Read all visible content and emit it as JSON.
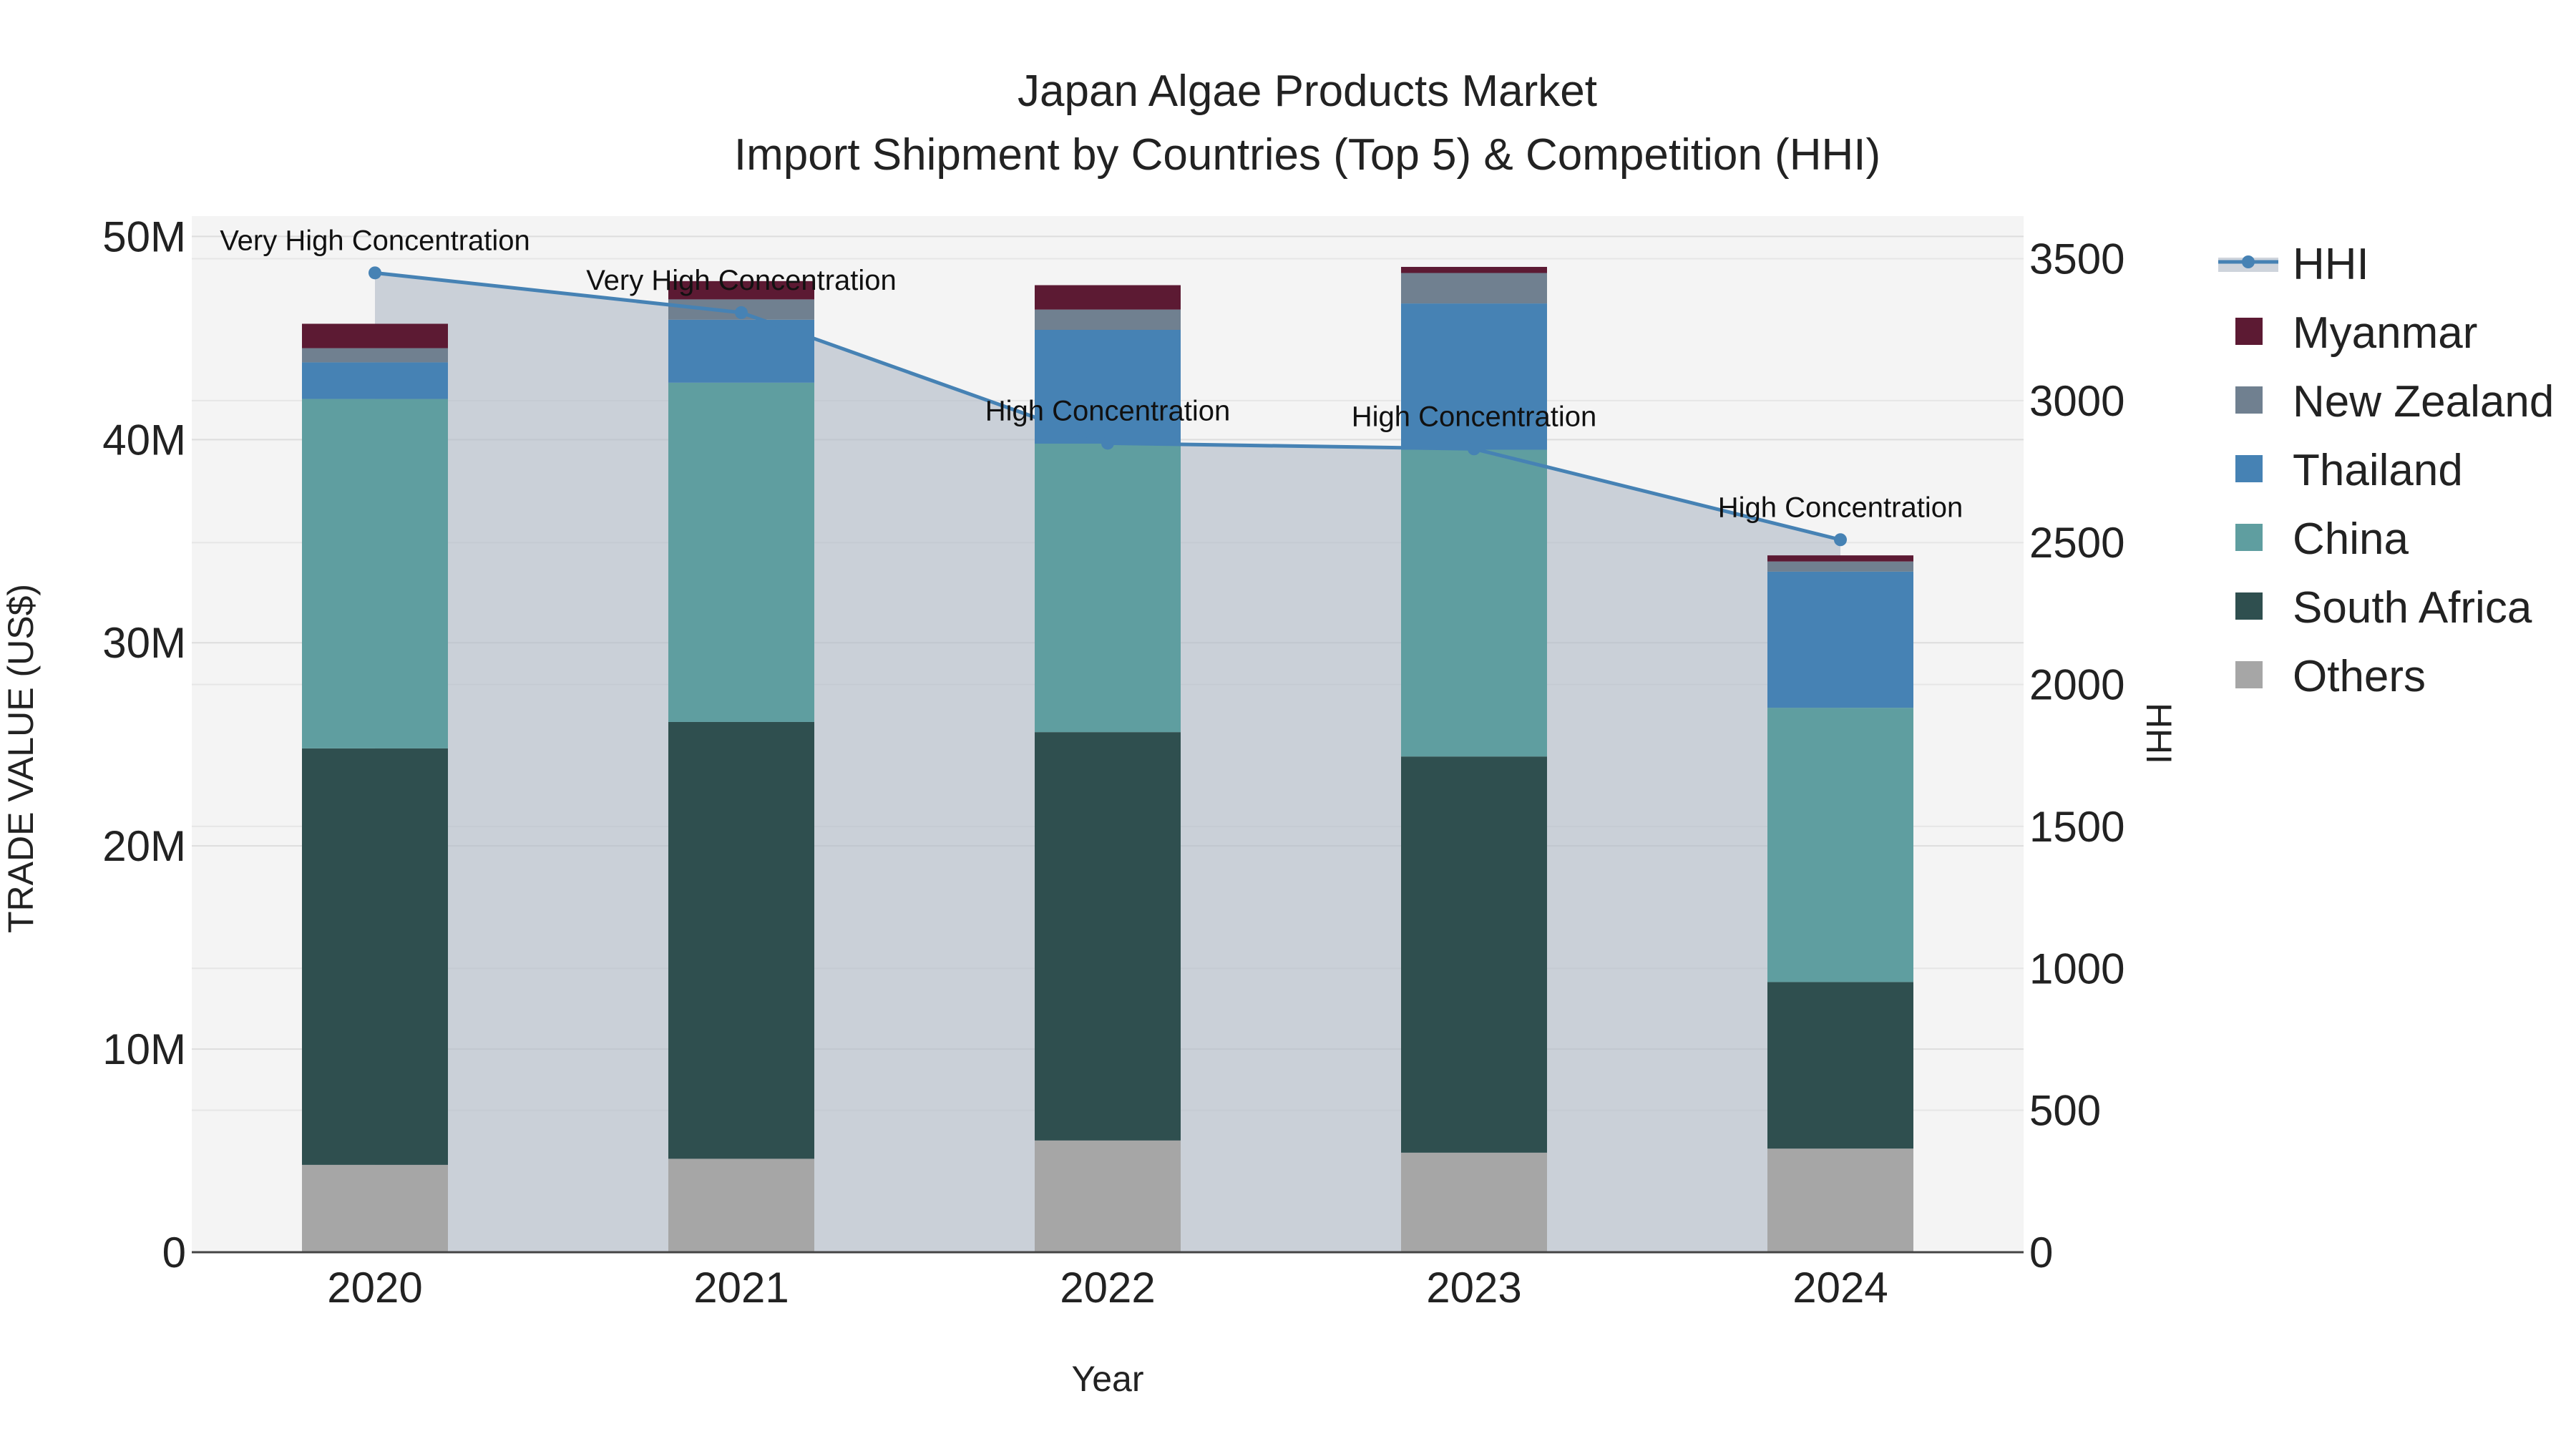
{
  "chart_data": {
    "type": "bar",
    "title": "Japan Algae Products Market",
    "subtitle": "Import Shipment by Countries (Top 5) & Competition (HHI)",
    "xlabel": "Year",
    "ylabel": "TRADE VALUE (US$)",
    "y2label": "HHI",
    "categories": [
      "2020",
      "2021",
      "2022",
      "2023",
      "2024"
    ],
    "ylim": [
      0,
      51000000
    ],
    "y_ticks": [
      {
        "value": 0,
        "label": "0"
      },
      {
        "value": 10000000,
        "label": "10M"
      },
      {
        "value": 20000000,
        "label": "20M"
      },
      {
        "value": 30000000,
        "label": "30M"
      },
      {
        "value": 40000000,
        "label": "40M"
      },
      {
        "value": 50000000,
        "label": "50M"
      }
    ],
    "y2lim": [
      0,
      3650
    ],
    "y2_ticks": [
      {
        "value": 0,
        "label": "0"
      },
      {
        "value": 500,
        "label": "500"
      },
      {
        "value": 1000,
        "label": "1000"
      },
      {
        "value": 1500,
        "label": "1500"
      },
      {
        "value": 2000,
        "label": "2000"
      },
      {
        "value": 2500,
        "label": "2500"
      },
      {
        "value": 3000,
        "label": "3000"
      },
      {
        "value": 3500,
        "label": "3500"
      }
    ],
    "series": [
      {
        "name": "Others",
        "color": "#a6a6a6",
        "values": [
          4300000,
          4600000,
          5500000,
          4900000,
          5100000
        ]
      },
      {
        "name": "South Africa",
        "color": "#2f4f4f",
        "values": [
          20500000,
          21500000,
          20100000,
          19500000,
          8200000
        ]
      },
      {
        "name": "China",
        "color": "#5f9ea0",
        "values": [
          17200000,
          16700000,
          14200000,
          15100000,
          13500000
        ]
      },
      {
        "name": "Thailand",
        "color": "#4682b4",
        "values": [
          1800000,
          3100000,
          5600000,
          7200000,
          6700000
        ]
      },
      {
        "name": "New Zealand",
        "color": "#708090",
        "values": [
          700000,
          1000000,
          1000000,
          1500000,
          500000
        ]
      },
      {
        "name": "Myanmar",
        "color": "#5c1a33",
        "values": [
          1200000,
          900000,
          1200000,
          300000,
          300000
        ]
      }
    ],
    "hhi": {
      "name": "HHI",
      "color": "#4682b4",
      "values": [
        3450,
        3310,
        2850,
        2830,
        2510
      ],
      "annotations": [
        "Very High Concentration",
        "Very High Concentration",
        "High Concentration",
        "High Concentration",
        "High Concentration"
      ]
    },
    "legend": [
      "HHI",
      "Myanmar",
      "New Zealand",
      "Thailand",
      "China",
      "South Africa",
      "Others"
    ],
    "legend_position": "right"
  }
}
